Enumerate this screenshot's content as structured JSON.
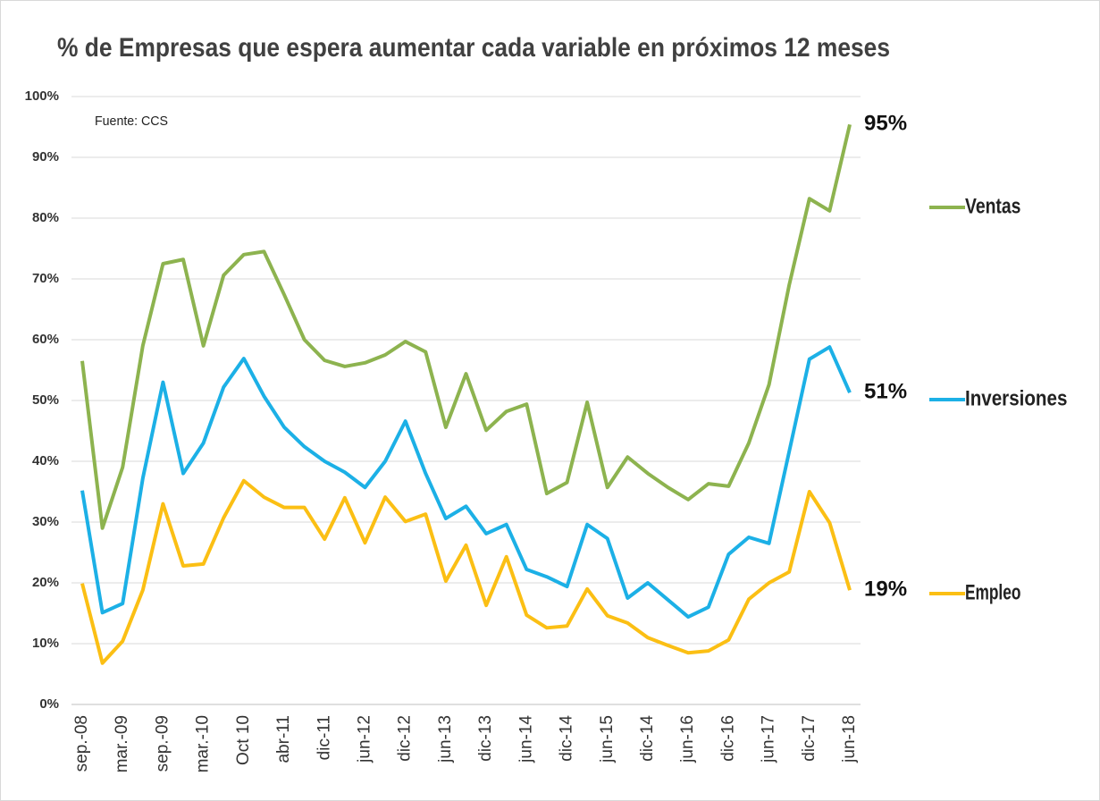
{
  "chart_data": {
    "type": "line",
    "title": "% de Empresas que espera aumentar cada variable en próximos 12 meses",
    "annotation": "Fuente: CCS",
    "categories": [
      "sep.-08",
      null,
      "mar.-09",
      null,
      "sep.-09",
      null,
      "mar.-10",
      null,
      "Oct 10",
      null,
      "abr-11",
      null,
      "dic-11",
      null,
      "jun-12",
      null,
      "dic-12",
      null,
      "jun-13",
      null,
      "dic-13",
      null,
      "jun-14",
      null,
      "dic-14",
      null,
      "jun-15",
      null,
      "dic-14",
      null,
      "jun-16",
      null,
      "dic-16",
      null,
      "jun-17",
      null,
      "dic-17",
      null,
      "jun-18"
    ],
    "ylim": [
      0,
      100
    ],
    "yticks": [
      {
        "value": 0,
        "label": "0%"
      },
      {
        "value": 10,
        "label": "10%"
      },
      {
        "value": 20,
        "label": "20%"
      },
      {
        "value": 30,
        "label": "30%"
      },
      {
        "value": 40,
        "label": "40%"
      },
      {
        "value": 50,
        "label": "50%"
      },
      {
        "value": 60,
        "label": "60%"
      },
      {
        "value": 70,
        "label": "70%"
      },
      {
        "value": 80,
        "label": "80%"
      },
      {
        "value": 90,
        "label": "90%"
      },
      {
        "value": 100,
        "label": "100%"
      }
    ],
    "grid": true,
    "legend": "right",
    "series": [
      {
        "name": "Ventas",
        "color": "#8db34f",
        "values": [
          56.5,
          29,
          39,
          59,
          72.5,
          73.2,
          59,
          70.6,
          74,
          74.5,
          67.4,
          60,
          56.6,
          55.6,
          56.2,
          57.5,
          59.7,
          58,
          45.6,
          54.4,
          45.1,
          48.2,
          49.4,
          34.7,
          36.5,
          49.7,
          35.7,
          40.7,
          38,
          35.7,
          33.7,
          36.3,
          35.9,
          43,
          52.6,
          69,
          83.2,
          81.2,
          95.4
        ],
        "value_labels": [
          null,
          null,
          null,
          null,
          null,
          null,
          null,
          null,
          null,
          null,
          null,
          null,
          null,
          null,
          null,
          null,
          null,
          null,
          null,
          null,
          null,
          null,
          null,
          null,
          null,
          null,
          null,
          null,
          null,
          null,
          null,
          null,
          null,
          null,
          null,
          null,
          null,
          null,
          "95%"
        ]
      },
      {
        "name": "Inversiones",
        "color": "#1cb0e6",
        "values": [
          35.2,
          15.1,
          16.6,
          37.2,
          53,
          38,
          43,
          52.2,
          56.9,
          50.7,
          45.6,
          42.4,
          40,
          38.2,
          35.7,
          40,
          46.6,
          38,
          30.6,
          32.6,
          28.1,
          29.6,
          22.2,
          21,
          19.4,
          29.6,
          27.3,
          17.5,
          20,
          17.2,
          14.4,
          16,
          24.7,
          27.5,
          26.5,
          41.6,
          56.8,
          58.8,
          51.3
        ],
        "value_labels": [
          null,
          null,
          null,
          null,
          null,
          null,
          null,
          null,
          null,
          null,
          null,
          null,
          null,
          null,
          null,
          null,
          null,
          null,
          null,
          null,
          null,
          null,
          null,
          null,
          null,
          null,
          null,
          null,
          null,
          null,
          null,
          null,
          null,
          null,
          null,
          null,
          null,
          null,
          "51%"
        ]
      },
      {
        "name": "Empleo",
        "color": "#fbbf14",
        "values": [
          19.9,
          6.8,
          10.4,
          18.8,
          33,
          22.8,
          23.1,
          30.7,
          36.8,
          34.1,
          32.4,
          32.4,
          27.2,
          34,
          26.6,
          34.1,
          30.1,
          31.3,
          20.3,
          26.2,
          16.3,
          24.3,
          14.7,
          12.6,
          12.9,
          19,
          14.6,
          13.4,
          11,
          9.7,
          8.5,
          8.8,
          10.6,
          17.3,
          20,
          21.8,
          35,
          29.9,
          18.8
        ],
        "value_labels": [
          null,
          null,
          null,
          null,
          null,
          null,
          null,
          null,
          null,
          null,
          null,
          null,
          null,
          null,
          null,
          null,
          null,
          null,
          null,
          null,
          null,
          null,
          null,
          null,
          null,
          null,
          null,
          null,
          null,
          null,
          null,
          null,
          null,
          null,
          null,
          null,
          null,
          null,
          "19%"
        ]
      }
    ]
  }
}
